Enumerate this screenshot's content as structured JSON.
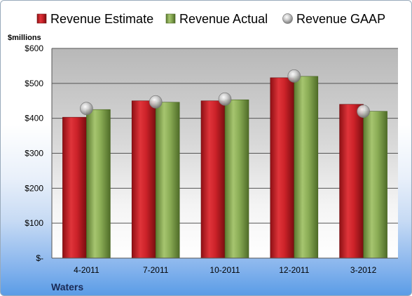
{
  "chart_data": {
    "type": "bar",
    "categories": [
      "4-2011",
      "7-2011",
      "10-2011",
      "12-2011",
      "3-2012"
    ],
    "series": [
      {
        "name": "Revenue Estimate",
        "kind": "bar",
        "color": "#cc2229",
        "values": [
          403,
          450,
          450,
          516,
          440
        ]
      },
      {
        "name": "Revenue Actual",
        "kind": "bar",
        "color": "#8aac55",
        "values": [
          425,
          446,
          453,
          520,
          420
        ]
      },
      {
        "name": "Revenue GAAP",
        "kind": "marker",
        "color": "#c8c8c8",
        "values": [
          428,
          447,
          455,
          521,
          420
        ]
      }
    ],
    "units_label": "$millions",
    "yticks": [
      "$-",
      "$100",
      "$200",
      "$300",
      "$400",
      "$500",
      "$600"
    ],
    "ylim": [
      0,
      600
    ],
    "grid": true,
    "legend_position": "top",
    "footer_label": "Waters"
  }
}
